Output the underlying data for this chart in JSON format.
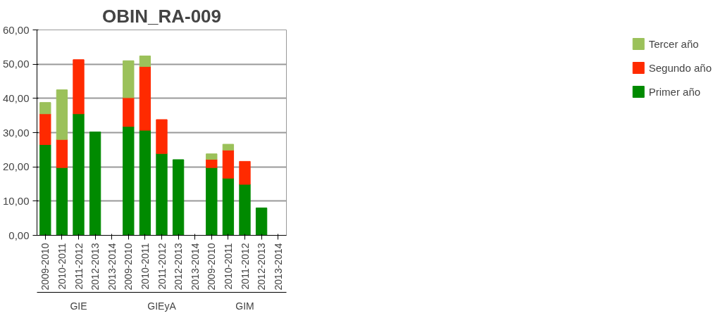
{
  "chart_data": {
    "type": "bar",
    "title": "OBIN_RA-009",
    "stacked": true,
    "categories": [
      "2009-2010",
      "2010-2011",
      "2011-2012",
      "2012-2013",
      "2013-2014",
      "2009-2010",
      "2010-2011",
      "2011-2012",
      "2012-2013",
      "2013-2014",
      "2009-2010",
      "2010-2011",
      "2011-2012",
      "2012-2013",
      "2013-2014"
    ],
    "annotations": [
      "GIE",
      "GIEyA",
      "GIM"
    ],
    "series": [
      {
        "name": "Primer año",
        "color": "#008a00",
        "values": [
          26.5,
          19.8,
          35.5,
          30.2,
          null,
          31.8,
          30.7,
          23.9,
          22.1,
          null,
          19.8,
          16.7,
          14.9,
          8.0,
          null
        ]
      },
      {
        "name": "Segundo año",
        "color": "#ff2a00",
        "values": [
          9.0,
          8.2,
          15.8,
          null,
          null,
          8.4,
          18.6,
          9.9,
          null,
          null,
          2.4,
          8.2,
          6.7,
          null,
          null
        ]
      },
      {
        "name": "Tercer año",
        "color": "#9bc15a",
        "values": [
          3.3,
          14.5,
          null,
          null,
          null,
          10.8,
          3.1,
          null,
          null,
          null,
          1.6,
          1.7,
          null,
          null,
          null
        ]
      }
    ],
    "ylim": [
      0,
      60
    ],
    "yticks": [
      {
        "value": 0,
        "label": "0,00"
      },
      {
        "value": 10,
        "label": "10,00"
      },
      {
        "value": 20,
        "label": "20,00"
      },
      {
        "value": 30,
        "label": "30,00"
      },
      {
        "value": 40,
        "label": "40,00"
      },
      {
        "value": 50,
        "label": "50,00"
      },
      {
        "value": 60,
        "label": "60,00"
      }
    ],
    "grid": "y",
    "legend": "right"
  }
}
